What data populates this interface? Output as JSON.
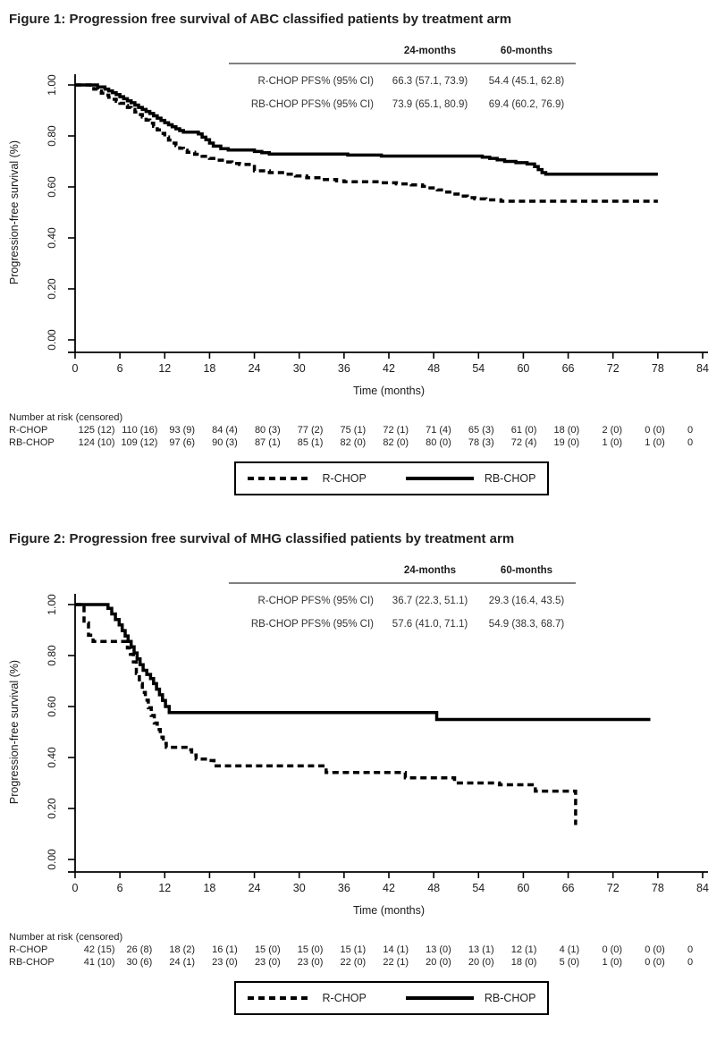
{
  "figures": [
    {
      "title": "Figure 1: Progression free survival of ABC classified patients by treatment arm",
      "stats_table": {
        "headers": [
          "24-months",
          "60-months"
        ],
        "rows": [
          {
            "label": "R-CHOP PFS% (95% CI)",
            "values": [
              "66.3 (57.1, 73.9)",
              "54.4 (45.1, 62.8)"
            ]
          },
          {
            "label": "RB-CHOP PFS% (95% CI)",
            "values": [
              "73.9 (65.1, 80.9)",
              "69.4 (60.2, 76.9)"
            ]
          }
        ]
      },
      "chart_data": {
        "type": "line",
        "subtype": "kaplan_meier_step",
        "xlabel": "Time (months)",
        "ylabel": "Progression-free survival (%)",
        "xlim": [
          0,
          84
        ],
        "ylim": [
          0,
          1.0
        ],
        "xticks": [
          0,
          6,
          12,
          18,
          24,
          30,
          36,
          42,
          48,
          54,
          60,
          66,
          72,
          78,
          84
        ],
        "yticks": [
          0,
          0.2,
          0.4,
          0.6,
          0.8,
          1.0
        ],
        "ytick_labels": [
          "0.00",
          "0.20",
          "0.40",
          "0.60",
          "0.80",
          "1.00"
        ],
        "line_color": "#000000",
        "series": [
          {
            "name": "R-CHOP",
            "line": "dashed",
            "points": [
              [
                0,
                1
              ],
              [
                2,
                0.992
              ],
              [
                2.5,
                0.984
              ],
              [
                3,
                0.976
              ],
              [
                3.5,
                0.968
              ],
              [
                4,
                0.96
              ],
              [
                4.5,
                0.952
              ],
              [
                5,
                0.944
              ],
              [
                5.5,
                0.936
              ],
              [
                6,
                0.928
              ],
              [
                6.5,
                0.92
              ],
              [
                7,
                0.912
              ],
              [
                7.5,
                0.904
              ],
              [
                8,
                0.894
              ],
              [
                8.5,
                0.884
              ],
              [
                9,
                0.874
              ],
              [
                9.5,
                0.862
              ],
              [
                10,
                0.85
              ],
              [
                10.5,
                0.838
              ],
              [
                11,
                0.824
              ],
              [
                11.5,
                0.81
              ],
              [
                12,
                0.796
              ],
              [
                12.5,
                0.784
              ],
              [
                13,
                0.772
              ],
              [
                13.5,
                0.762
              ],
              [
                14,
                0.752
              ],
              [
                14.5,
                0.744
              ],
              [
                15,
                0.736
              ],
              [
                16,
                0.728
              ],
              [
                17,
                0.72
              ],
              [
                18,
                0.712
              ],
              [
                19,
                0.705
              ],
              [
                20,
                0.698
              ],
              [
                21,
                0.692
              ],
              [
                22,
                0.688
              ],
              [
                24,
                0.663
              ],
              [
                26,
                0.656
              ],
              [
                28,
                0.65
              ],
              [
                29.5,
                0.643
              ],
              [
                31,
                0.636
              ],
              [
                33,
                0.629
              ],
              [
                35,
                0.624
              ],
              [
                36,
                0.62
              ],
              [
                41,
                0.616
              ],
              [
                43,
                0.612
              ],
              [
                45,
                0.608
              ],
              [
                46.5,
                0.602
              ],
              [
                47.5,
                0.596
              ],
              [
                48.5,
                0.588
              ],
              [
                49.5,
                0.58
              ],
              [
                50.5,
                0.572
              ],
              [
                51.5,
                0.564
              ],
              [
                52.5,
                0.558
              ],
              [
                53.5,
                0.553
              ],
              [
                55,
                0.549
              ],
              [
                57,
                0.544
              ],
              [
                78,
                0.544
              ]
            ]
          },
          {
            "name": "RB-CHOP",
            "line": "solid",
            "points": [
              [
                0,
                1
              ],
              [
                3,
                0.992
              ],
              [
                4,
                0.984
              ],
              [
                4.5,
                0.977
              ],
              [
                5,
                0.97
              ],
              [
                5.5,
                0.962
              ],
              [
                6,
                0.954
              ],
              [
                6.5,
                0.946
              ],
              [
                7,
                0.938
              ],
              [
                7.5,
                0.93
              ],
              [
                8,
                0.921
              ],
              [
                8.5,
                0.912
              ],
              [
                9,
                0.904
              ],
              [
                9.5,
                0.896
              ],
              [
                10,
                0.888
              ],
              [
                10.5,
                0.879
              ],
              [
                11,
                0.87
              ],
              [
                11.5,
                0.861
              ],
              [
                12,
                0.852
              ],
              [
                12.5,
                0.844
              ],
              [
                13,
                0.836
              ],
              [
                13.5,
                0.828
              ],
              [
                14,
                0.821
              ],
              [
                14.5,
                0.815
              ],
              [
                16.5,
                0.808
              ],
              [
                17,
                0.795
              ],
              [
                17.5,
                0.785
              ],
              [
                18,
                0.772
              ],
              [
                18.5,
                0.76
              ],
              [
                19.5,
                0.75
              ],
              [
                20.5,
                0.745
              ],
              [
                24,
                0.739
              ],
              [
                25,
                0.734
              ],
              [
                26,
                0.729
              ],
              [
                36.5,
                0.725
              ],
              [
                41,
                0.721
              ],
              [
                54.5,
                0.717
              ],
              [
                55.5,
                0.712
              ],
              [
                56.5,
                0.706
              ],
              [
                57.5,
                0.7
              ],
              [
                59,
                0.695
              ],
              [
                60.5,
                0.69
              ],
              [
                61.5,
                0.68
              ],
              [
                62,
                0.668
              ],
              [
                62.5,
                0.656
              ],
              [
                63,
                0.65
              ],
              [
                78,
                0.65
              ]
            ]
          }
        ]
      },
      "risk_table": {
        "title": "Number at risk (censored)",
        "times": [
          0,
          6,
          12,
          18,
          24,
          30,
          36,
          42,
          48,
          54,
          60,
          66,
          72,
          78,
          84
        ],
        "rows": [
          {
            "label": "R-CHOP",
            "at_risk": [
              125,
              110,
              93,
              84,
              80,
              77,
              75,
              72,
              71,
              65,
              61,
              18,
              2,
              0,
              0
            ],
            "censored": [
              12,
              16,
              9,
              4,
              3,
              2,
              1,
              1,
              4,
              3,
              0,
              0,
              0,
              0
            ]
          },
          {
            "label": "RB-CHOP",
            "at_risk": [
              124,
              109,
              97,
              90,
              87,
              85,
              82,
              82,
              80,
              78,
              72,
              19,
              1,
              1,
              0
            ],
            "censored": [
              10,
              12,
              6,
              3,
              1,
              1,
              0,
              0,
              0,
              3,
              4,
              0,
              0,
              0
            ]
          }
        ]
      },
      "legend": {
        "items": [
          {
            "label": "R-CHOP",
            "line": "dashed"
          },
          {
            "label": "RB-CHOP",
            "line": "solid"
          }
        ]
      }
    },
    {
      "title": "Figure 2: Progression free survival of MHG classified patients by treatment arm",
      "stats_table": {
        "headers": [
          "24-months",
          "60-months"
        ],
        "rows": [
          {
            "label": "R-CHOP PFS% (95% CI)",
            "values": [
              "36.7 (22.3, 51.1)",
              "29.3 (16.4, 43.5)"
            ]
          },
          {
            "label": "RB-CHOP PFS% (95% CI)",
            "values": [
              "57.6 (41.0, 71.1)",
              "54.9 (38.3, 68.7)"
            ]
          }
        ]
      },
      "chart_data": {
        "type": "line",
        "subtype": "kaplan_meier_step",
        "xlabel": "Time (months)",
        "ylabel": "Progression-free survival (%)",
        "xlim": [
          0,
          84
        ],
        "ylim": [
          0,
          1.0
        ],
        "xticks": [
          0,
          6,
          12,
          18,
          24,
          30,
          36,
          42,
          48,
          54,
          60,
          66,
          72,
          78,
          84
        ],
        "yticks": [
          0,
          0.2,
          0.4,
          0.6,
          0.8,
          1.0
        ],
        "ytick_labels": [
          "0.00",
          "0.20",
          "0.40",
          "0.60",
          "0.80",
          "1.00"
        ],
        "line_color": "#000000",
        "series": [
          {
            "name": "R-CHOP",
            "line": "dashed",
            "points": [
              [
                0,
                1
              ],
              [
                1.2,
                0.928
              ],
              [
                1.8,
                0.88
              ],
              [
                2.4,
                0.855
              ],
              [
                7,
                0.83
              ],
              [
                7.4,
                0.805
              ],
              [
                7.8,
                0.775
              ],
              [
                8.2,
                0.73
              ],
              [
                8.6,
                0.69
              ],
              [
                9,
                0.655
              ],
              [
                9.4,
                0.625
              ],
              [
                9.8,
                0.595
              ],
              [
                10.2,
                0.565
              ],
              [
                10.6,
                0.535
              ],
              [
                11,
                0.51
              ],
              [
                11.4,
                0.48
              ],
              [
                11.8,
                0.455
              ],
              [
                12.2,
                0.44
              ],
              [
                14.6,
                0.44
              ],
              [
                15.2,
                0.43
              ],
              [
                15.6,
                0.41
              ],
              [
                16.2,
                0.394
              ],
              [
                17.8,
                0.388
              ],
              [
                18.6,
                0.367
              ],
              [
                33,
                0.367
              ],
              [
                33.6,
                0.341
              ],
              [
                43.6,
                0.341
              ],
              [
                44.2,
                0.32
              ],
              [
                50.2,
                0.32
              ],
              [
                50.8,
                0.3
              ],
              [
                56.2,
                0.3
              ],
              [
                56.8,
                0.293
              ],
              [
                61,
                0.293
              ],
              [
                61.6,
                0.268
              ],
              [
                66.6,
                0.268
              ],
              [
                67,
                0.135
              ]
            ]
          },
          {
            "name": "RB-CHOP",
            "line": "solid",
            "points": [
              [
                0,
                1
              ],
              [
                4.4,
                0.985
              ],
              [
                4.9,
                0.963
              ],
              [
                5.4,
                0.941
              ],
              [
                5.9,
                0.92
              ],
              [
                6.3,
                0.898
              ],
              [
                6.7,
                0.877
              ],
              [
                7.1,
                0.855
              ],
              [
                7.5,
                0.834
              ],
              [
                7.9,
                0.81
              ],
              [
                8.3,
                0.787
              ],
              [
                8.7,
                0.764
              ],
              [
                9.1,
                0.742
              ],
              [
                9.6,
                0.726
              ],
              [
                10.1,
                0.71
              ],
              [
                10.5,
                0.69
              ],
              [
                10.9,
                0.668
              ],
              [
                11.3,
                0.646
              ],
              [
                11.7,
                0.624
              ],
              [
                12.1,
                0.6
              ],
              [
                12.6,
                0.576
              ],
              [
                48,
                0.576
              ],
              [
                48.4,
                0.549
              ],
              [
                77,
                0.549
              ]
            ]
          }
        ]
      },
      "risk_table": {
        "title": "Number at risk (censored)",
        "times": [
          0,
          6,
          12,
          18,
          24,
          30,
          36,
          42,
          48,
          54,
          60,
          66,
          72,
          78,
          84
        ],
        "rows": [
          {
            "label": "R-CHOP",
            "at_risk": [
              42,
              26,
              18,
              16,
              15,
              15,
              15,
              14,
              13,
              13,
              12,
              4,
              0,
              0,
              0
            ],
            "censored": [
              15,
              8,
              2,
              1,
              0,
              0,
              1,
              1,
              0,
              1,
              1,
              1,
              0,
              0
            ]
          },
          {
            "label": "RB-CHOP",
            "at_risk": [
              41,
              30,
              24,
              23,
              23,
              23,
              22,
              22,
              20,
              20,
              18,
              5,
              1,
              0,
              0
            ],
            "censored": [
              10,
              6,
              1,
              0,
              0,
              0,
              0,
              1,
              0,
              0,
              0,
              0,
              0,
              0
            ]
          }
        ]
      },
      "legend": {
        "items": [
          {
            "label": "R-CHOP",
            "line": "dashed"
          },
          {
            "label": "RB-CHOP",
            "line": "solid"
          }
        ]
      }
    }
  ]
}
